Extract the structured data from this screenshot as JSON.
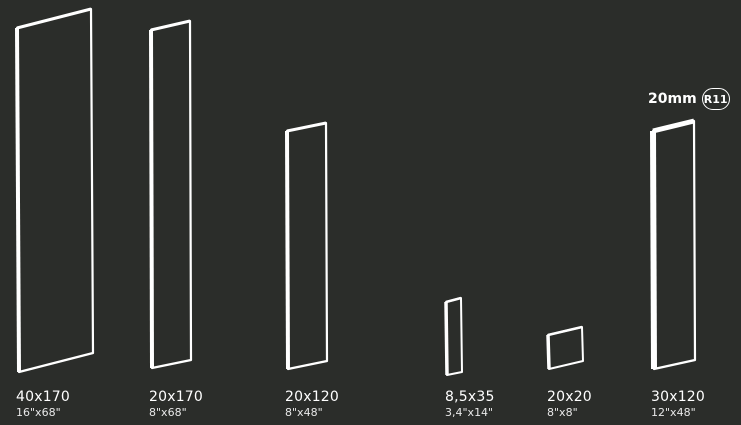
{
  "tiles": [
    {
      "metric": "40x170",
      "imperial": "16\"x68\""
    },
    {
      "metric": "20x170",
      "imperial": "8\"x68\""
    },
    {
      "metric": "20x120",
      "imperial": "8\"x48\""
    },
    {
      "metric": "8,5x35",
      "imperial": "3,4\"x14\""
    },
    {
      "metric": "20x20",
      "imperial": "8\"x8\""
    },
    {
      "metric": "30x120",
      "imperial": "12\"x48\""
    }
  ],
  "thickness": {
    "value": "20mm",
    "badge": "R11"
  },
  "colors": {
    "background": "#2b2d2a",
    "tile": "#ffffff"
  }
}
